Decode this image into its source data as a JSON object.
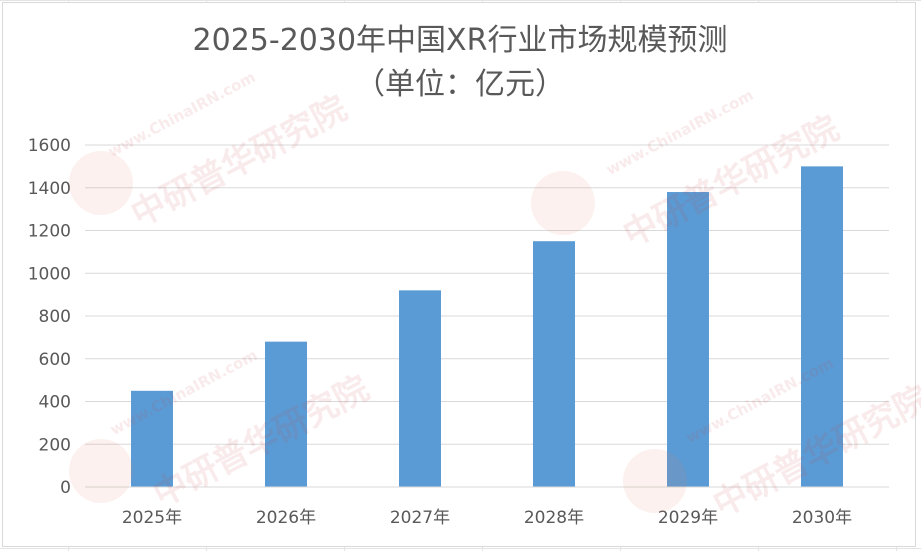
{
  "chart_data": {
    "type": "bar",
    "title": "2025-2030年中国XR行业市场规模预测",
    "subtitle": "（单位：亿元）",
    "categories": [
      "2025年",
      "2026年",
      "2027年",
      "2028年",
      "2029年",
      "2030年"
    ],
    "values": [
      450,
      680,
      920,
      1150,
      1380,
      1500
    ],
    "ylim": [
      0,
      1600
    ],
    "yticks": [
      0,
      200,
      400,
      600,
      800,
      1000,
      1200,
      1400,
      1600
    ],
    "xlabel": "",
    "ylabel": "",
    "grid": true,
    "legend": "none",
    "bar_color": "#5b9bd5",
    "grid_color": "#d9d9d9",
    "text_color": "#595959"
  },
  "watermark": {
    "brand": "中研普华研究院",
    "url": "www.ChinaIRN.com",
    "logo": "CIRN"
  }
}
